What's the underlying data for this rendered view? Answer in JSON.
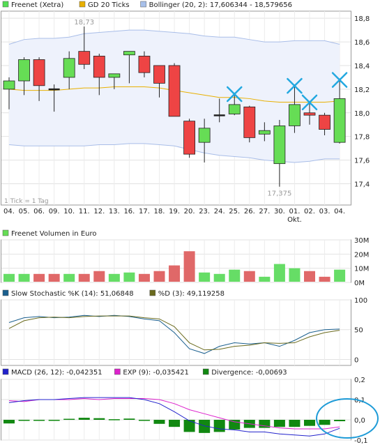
{
  "chart_data": [
    {
      "type": "candlestick",
      "legend": [
        {
          "label": "Freenet (Xetra)",
          "color": "#55dd55"
        },
        {
          "label": "GD 20 Ticks",
          "color": "#e8b000"
        },
        {
          "label": "Bollinger (20, 2): 17,606344 - 18,579656",
          "color": "#a8c0ea"
        }
      ],
      "x_labels": [
        "04.",
        "05.",
        "06.",
        "09.",
        "10.",
        "11.",
        "12.",
        "13.",
        "16.",
        "17.",
        "18.",
        "19.",
        "20.",
        "23.",
        "24.",
        "25.",
        "26.",
        "27.",
        "30.",
        "01.",
        "02.",
        "03.",
        "04."
      ],
      "x_sublabel": {
        "index": 19,
        "text": "Okt."
      },
      "y_ticks": [
        "17,4",
        "17,6",
        "17,8",
        "18,0",
        "18,2",
        "18,4",
        "18,6",
        "18,8"
      ],
      "y_tick_values": [
        17.4,
        17.6,
        17.8,
        18.0,
        18.2,
        18.4,
        18.6,
        18.8
      ],
      "ylim": [
        17.22,
        18.86
      ],
      "max_label": "18,73",
      "min_label": "17,375",
      "footnote": "1 Tick = 1 Tag",
      "colors": {
        "up": "#66dd55",
        "down": "#ee4444",
        "band_fill": "#eef2fc",
        "band_line": "#a8bde8",
        "ma_line": "#e8b000",
        "marker": "#22a8e0"
      },
      "candles": [
        {
          "o": 18.2,
          "h": 18.3,
          "l": 18.03,
          "c": 18.27
        },
        {
          "o": 18.27,
          "h": 18.47,
          "l": 18.15,
          "c": 18.45
        },
        {
          "o": 18.45,
          "h": 18.47,
          "l": 18.1,
          "c": 18.23
        },
        {
          "o": 18.2,
          "h": 18.24,
          "l": 18.01,
          "c": 18.2
        },
        {
          "o": 18.3,
          "h": 18.52,
          "l": 18.2,
          "c": 18.46
        },
        {
          "o": 18.52,
          "h": 18.73,
          "l": 18.37,
          "c": 18.41
        },
        {
          "o": 18.48,
          "h": 18.5,
          "l": 18.15,
          "c": 18.3
        },
        {
          "o": 18.3,
          "h": 18.33,
          "l": 18.2,
          "c": 18.33
        },
        {
          "o": 18.49,
          "h": 18.52,
          "l": 18.25,
          "c": 18.52
        },
        {
          "o": 18.48,
          "h": 18.52,
          "l": 18.3,
          "c": 18.34
        },
        {
          "o": 18.4,
          "h": 18.4,
          "l": 18.13,
          "c": 18.25
        },
        {
          "o": 18.4,
          "h": 18.42,
          "l": 17.97,
          "c": 17.97
        },
        {
          "o": 17.93,
          "h": 17.95,
          "l": 17.62,
          "c": 17.65
        },
        {
          "o": 17.75,
          "h": 17.95,
          "l": 17.58,
          "c": 17.87
        },
        {
          "o": 17.98,
          "h": 18.12,
          "l": 17.92,
          "c": 17.98
        },
        {
          "o": 17.99,
          "h": 18.17,
          "l": 17.98,
          "c": 18.07
        },
        {
          "o": 18.05,
          "h": 18.06,
          "l": 17.75,
          "c": 17.79
        },
        {
          "o": 17.82,
          "h": 17.92,
          "l": 17.76,
          "c": 17.85
        },
        {
          "o": 17.57,
          "h": 17.94,
          "l": 17.375,
          "c": 17.89
        },
        {
          "o": 17.89,
          "h": 18.24,
          "l": 17.83,
          "c": 18.07
        },
        {
          "o": 18.0,
          "h": 18.1,
          "l": 17.9,
          "c": 17.98
        },
        {
          "o": 17.98,
          "h": 18.0,
          "l": 17.81,
          "c": 17.86
        },
        {
          "o": 17.75,
          "h": 18.29,
          "l": 17.74,
          "c": 18.12
        }
      ],
      "bollinger_upper": [
        18.58,
        18.62,
        18.63,
        18.63,
        18.64,
        18.67,
        18.68,
        18.69,
        18.7,
        18.7,
        18.69,
        18.68,
        18.67,
        18.65,
        18.64,
        18.64,
        18.62,
        18.6,
        18.6,
        18.61,
        18.61,
        18.61,
        18.58
      ],
      "bollinger_lower": [
        17.73,
        17.72,
        17.72,
        17.72,
        17.72,
        17.72,
        17.73,
        17.73,
        17.74,
        17.74,
        17.73,
        17.72,
        17.69,
        17.66,
        17.64,
        17.63,
        17.62,
        17.6,
        17.59,
        17.58,
        17.59,
        17.61,
        17.61
      ],
      "ma20": [
        18.2,
        18.19,
        18.19,
        18.19,
        18.2,
        18.21,
        18.21,
        18.22,
        18.22,
        18.22,
        18.21,
        18.19,
        18.17,
        18.15,
        18.13,
        18.13,
        18.12,
        18.1,
        18.09,
        18.09,
        18.09,
        18.09,
        18.1
      ],
      "markers": [
        15,
        19,
        20,
        22
      ]
    },
    {
      "type": "bar",
      "legend": [
        {
          "label": "Freenet Volumen in Euro",
          "color": "#66dd55"
        }
      ],
      "y_ticks": [
        "0M",
        "10M",
        "20M",
        "30M"
      ],
      "y_tick_values": [
        0,
        10,
        20,
        30
      ],
      "ylim": [
        0,
        30
      ],
      "values": [
        6,
        6,
        6,
        6,
        6,
        6,
        8,
        6,
        7,
        6,
        8,
        12,
        22,
        7,
        6,
        9,
        8,
        4,
        13,
        10,
        8,
        4,
        9
      ],
      "colors": [
        "up",
        "up",
        "down",
        "down",
        "up",
        "down",
        "down",
        "up",
        "up",
        "down",
        "down",
        "down",
        "down",
        "up",
        "up",
        "up",
        "down",
        "up",
        "up",
        "up",
        "down",
        "down",
        "up"
      ]
    },
    {
      "type": "line",
      "legend": [
        {
          "label": "Slow Stochastic %K (14): 51,06848",
          "color": "#1a5f8e"
        },
        {
          "label": "%D (3): 49,119258",
          "color": "#6b6b1e"
        }
      ],
      "y_ticks": [
        "0",
        "50",
        "100"
      ],
      "y_tick_values": [
        0,
        50,
        100
      ],
      "ylim": [
        -10,
        100
      ],
      "series": [
        {
          "name": "Slow Stochastic %K (14): 51,06848",
          "color": "#1a5f8e",
          "values": [
            62,
            70,
            72,
            70,
            71,
            74,
            72,
            74,
            72,
            68,
            65,
            45,
            18,
            10,
            22,
            28,
            26,
            28,
            22,
            32,
            45,
            50,
            51
          ]
        },
        {
          "name": "%D (3): 49,119258",
          "color": "#6b6b1e",
          "values": [
            52,
            65,
            70,
            71,
            70,
            72,
            73,
            73,
            73,
            70,
            68,
            55,
            28,
            16,
            17,
            22,
            24,
            28,
            27,
            28,
            38,
            45,
            49
          ]
        }
      ]
    },
    {
      "type": "bar_line",
      "legend": [
        {
          "label": "MACD (26, 12): -0,042351",
          "color": "#2222cc"
        },
        {
          "label": "EXP (9): -0,035421",
          "color": "#dd22cc"
        },
        {
          "label": "Divergence: -0,00693",
          "color": "#118811"
        }
      ],
      "y_ticks": [
        "-0,1",
        "0,0",
        "0,1",
        "0,2"
      ],
      "y_tick_values": [
        -0.1,
        0.0,
        0.1,
        0.2
      ],
      "ylim": [
        -0.1,
        0.2
      ],
      "macd": [
        0.085,
        0.095,
        0.1,
        0.1,
        0.105,
        0.11,
        0.11,
        0.11,
        0.11,
        0.1,
        0.08,
        0.04,
        -0.005,
        -0.03,
        -0.045,
        -0.05,
        -0.06,
        -0.06,
        -0.07,
        -0.075,
        -0.08,
        -0.07,
        -0.042
      ],
      "exp": [
        0.095,
        0.09,
        0.1,
        0.1,
        0.1,
        0.105,
        0.1,
        0.105,
        0.105,
        0.105,
        0.1,
        0.08,
        0.05,
        0.03,
        0.01,
        -0.01,
        -0.02,
        -0.03,
        -0.04,
        -0.045,
        -0.045,
        -0.045,
        -0.035
      ],
      "divergence": [
        -0.018,
        -0.004,
        -0.005,
        -0.002,
        0.005,
        0.01,
        0.008,
        0.003,
        0.006,
        -0.003,
        -0.02,
        -0.035,
        -0.06,
        -0.065,
        -0.06,
        -0.048,
        -0.04,
        -0.04,
        -0.035,
        -0.035,
        -0.03,
        -0.025,
        -0.007
      ],
      "highlight_color": "#1e9bd7"
    }
  ]
}
